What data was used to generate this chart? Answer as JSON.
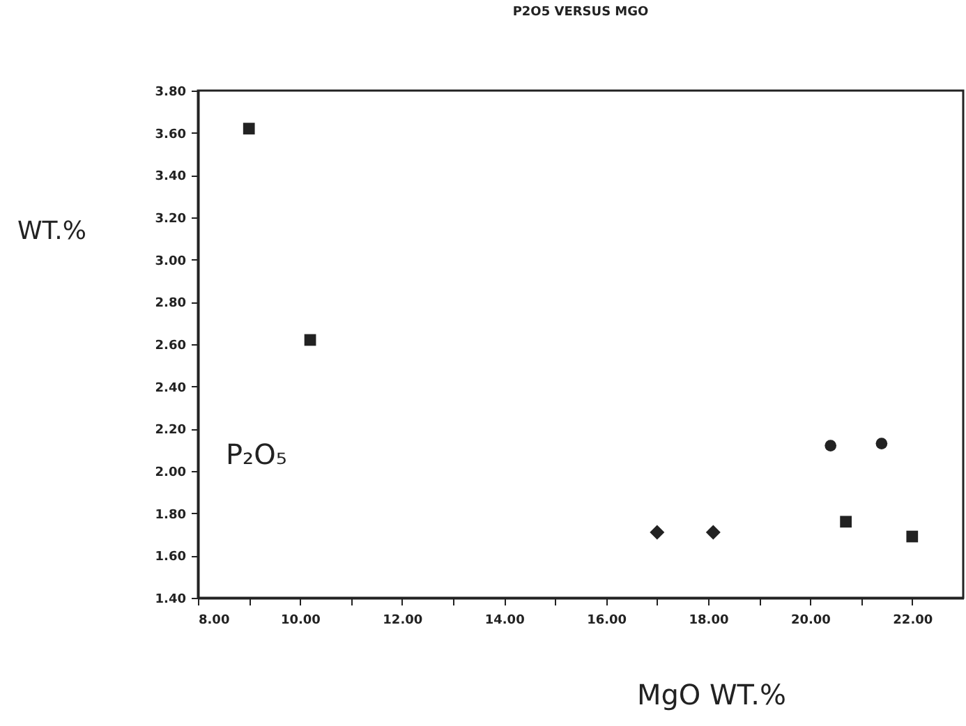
{
  "chart_data": {
    "type": "scatter",
    "title": "P2O5 VERSUS MGO",
    "xlabel": "MgO   WT.%",
    "ylabel": "WT.%",
    "annotations": [
      "P₂O₅"
    ],
    "xlim": [
      8,
      23
    ],
    "xticks": [
      {
        "value": 8,
        "label": "8.00"
      },
      {
        "value": 9,
        "label": null
      },
      {
        "value": 10,
        "label": "10.00"
      },
      {
        "value": 11,
        "label": null
      },
      {
        "value": 12,
        "label": "12.00"
      },
      {
        "value": 13,
        "label": null
      },
      {
        "value": 14,
        "label": "14.00"
      },
      {
        "value": 15,
        "label": null
      },
      {
        "value": 16,
        "label": "16.00"
      },
      {
        "value": 17,
        "label": null
      },
      {
        "value": 18,
        "label": "18.00"
      },
      {
        "value": 19,
        "label": null
      },
      {
        "value": 20,
        "label": "20.00"
      },
      {
        "value": 21,
        "label": null
      },
      {
        "value": 22,
        "label": "22.00"
      }
    ],
    "ylim": [
      1.4,
      3.8
    ],
    "yticks": [
      {
        "value": 1.4,
        "label": "1.40"
      },
      {
        "value": 1.6,
        "label": "1.60"
      },
      {
        "value": 1.8,
        "label": "1.80"
      },
      {
        "value": 2.0,
        "label": "2.00"
      },
      {
        "value": 2.2,
        "label": "2.20"
      },
      {
        "value": 2.4,
        "label": "2.40"
      },
      {
        "value": 2.6,
        "label": "2.60"
      },
      {
        "value": 2.8,
        "label": "2.80"
      },
      {
        "value": 3.0,
        "label": "3.00"
      },
      {
        "value": 3.2,
        "label": "3.20"
      },
      {
        "value": 3.4,
        "label": "3.40"
      },
      {
        "value": 3.6,
        "label": "3.60"
      },
      {
        "value": 3.8,
        "label": "3.80"
      }
    ],
    "grid": false,
    "series": [
      {
        "color": "#222222",
        "marker": "square",
        "x": [
          9.0,
          10.2
        ],
        "values": [
          3.62,
          2.62
        ]
      },
      {
        "color": "#222222",
        "marker": "diamond",
        "x": [
          17.0,
          18.1
        ],
        "values": [
          1.71,
          1.71
        ]
      },
      {
        "color": "#222222",
        "marker": "circle",
        "x": [
          20.4,
          21.4
        ],
        "values": [
          2.12,
          2.13
        ]
      },
      {
        "color": "#222222",
        "marker": "square",
        "x": [
          20.7,
          22.0
        ],
        "values": [
          1.76,
          1.69
        ]
      }
    ]
  }
}
